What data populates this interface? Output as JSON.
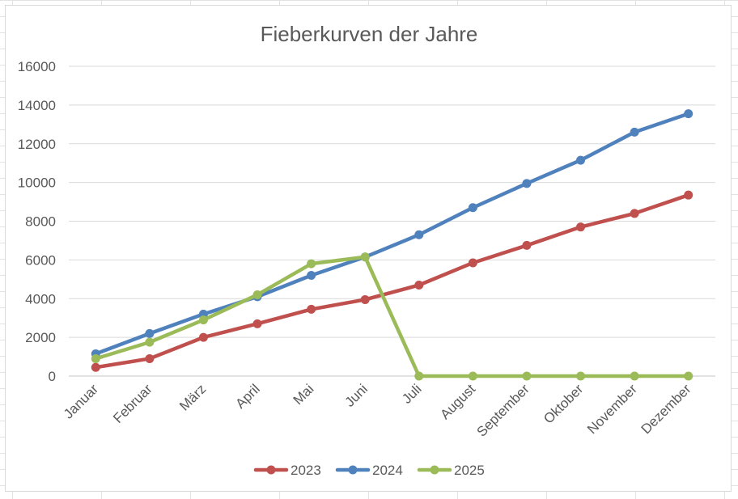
{
  "chart_data": {
    "type": "line",
    "title": "Fieberkurven der Jahre",
    "xlabel": "",
    "ylabel": "",
    "categories": [
      "Januar",
      "Februar",
      "März",
      "April",
      "Mai",
      "Juni",
      "Juli",
      "August",
      "September",
      "Oktober",
      "November",
      "Dezember"
    ],
    "ylim": [
      0,
      16000
    ],
    "yticks": [
      0,
      2000,
      4000,
      6000,
      8000,
      10000,
      12000,
      14000,
      16000
    ],
    "grid": true,
    "legend_position": "bottom",
    "series": [
      {
        "name": "2023",
        "color": "#c0504d",
        "values": [
          450,
          900,
          2000,
          2700,
          3450,
          3950,
          4700,
          5850,
          6750,
          7700,
          8400,
          9350
        ]
      },
      {
        "name": "2024",
        "color": "#4f81bd",
        "values": [
          1150,
          2200,
          3200,
          4100,
          5200,
          6150,
          7300,
          8700,
          9950,
          11150,
          12600,
          13550
        ]
      },
      {
        "name": "2025",
        "color": "#9bbb59",
        "values": [
          900,
          1750,
          2900,
          4200,
          5800,
          6150,
          0,
          0,
          0,
          0,
          0,
          0
        ]
      }
    ]
  }
}
